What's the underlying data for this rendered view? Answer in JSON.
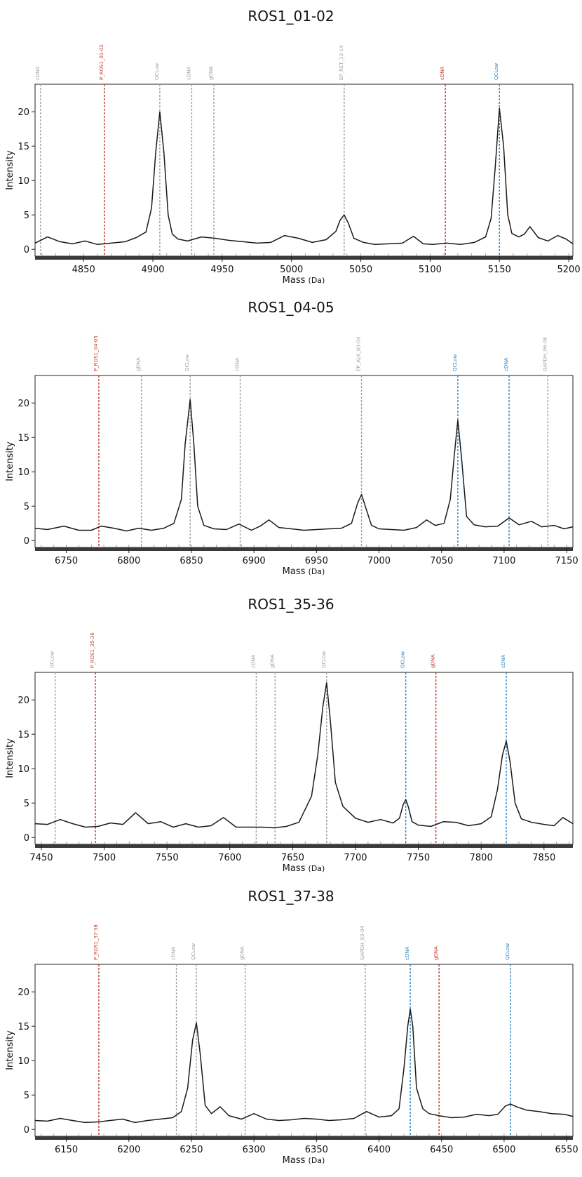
{
  "chart_data": [
    {
      "type": "line",
      "title": "ROS1_01-02",
      "xlabel": "Mass",
      "xlabel_unit": "(Da)",
      "ylabel": "Intensity",
      "xlim": [
        4815,
        5203
      ],
      "ylim": [
        -1,
        24
      ],
      "x_ticks": [
        4850,
        4900,
        4950,
        5000,
        5050,
        5100,
        5150,
        5200
      ],
      "y_ticks": [
        0,
        5,
        10,
        15,
        20
      ],
      "markers": [
        {
          "x": 4819,
          "label": "cDNA",
          "color": "#a0a0a0"
        },
        {
          "x": 4865,
          "label": "P_ROS1_01-02",
          "color": "#c0392b"
        },
        {
          "x": 4905,
          "label": "QCLow",
          "color": "#a0a0a0"
        },
        {
          "x": 4928,
          "label": "cDNA",
          "color": "#a0a0a0"
        },
        {
          "x": 4944,
          "label": "gDNA",
          "color": "#a0a0a0"
        },
        {
          "x": 5038,
          "label": "EP_RET_13-14",
          "color": "#a0a0a0"
        },
        {
          "x": 5111,
          "label": "cDNA",
          "color": "#c0392b"
        },
        {
          "x": 5150,
          "label": "QCLow",
          "color": "#2e86c1"
        }
      ],
      "series": [
        {
          "x": [
            4815,
            4824,
            4833,
            4842,
            4851,
            4860,
            4870,
            4880,
            4888,
            4895,
            4899,
            4902,
            4905,
            4908,
            4911,
            4914,
            4918,
            4925,
            4935,
            4945,
            4955,
            4965,
            4975,
            4985,
            4995,
            5005,
            5015,
            5025,
            5032,
            5035,
            5038,
            5041,
            5045,
            5052,
            5060,
            5070,
            5080,
            5088,
            5095,
            5102,
            5112,
            5122,
            5132,
            5140,
            5144,
            5147,
            5150,
            5153,
            5156,
            5159,
            5164,
            5168,
            5172,
            5178,
            5185,
            5192,
            5198,
            5203
          ],
          "y": [
            0.9,
            1.8,
            1.1,
            0.8,
            1.2,
            0.7,
            0.9,
            1.1,
            1.7,
            2.5,
            6,
            14,
            20,
            14,
            5,
            2.2,
            1.5,
            1.2,
            1.8,
            1.6,
            1.3,
            1.1,
            0.9,
            1.0,
            2.0,
            1.6,
            1.0,
            1.4,
            2.6,
            4.2,
            5.0,
            3.8,
            1.6,
            1.0,
            0.7,
            0.8,
            0.9,
            1.9,
            0.8,
            0.7,
            0.9,
            0.7,
            1.0,
            1.8,
            4.5,
            12,
            20.5,
            15,
            5,
            2.3,
            1.8,
            2.2,
            3.3,
            1.7,
            1.2,
            2.0,
            1.5,
            0.8
          ]
        }
      ]
    },
    {
      "type": "line",
      "title": "ROS1_04-05",
      "xlabel": "Mass",
      "xlabel_unit": "(Da)",
      "ylabel": "Intensity",
      "xlim": [
        6725,
        7155
      ],
      "ylim": [
        -1,
        24
      ],
      "x_ticks": [
        6750,
        6800,
        6850,
        6900,
        6950,
        7000,
        7050,
        7100,
        7150
      ],
      "y_ticks": [
        0,
        5,
        10,
        15,
        20
      ],
      "markers": [
        {
          "x": 6776,
          "label": "P_ROS1_04-05",
          "color": "#c0392b"
        },
        {
          "x": 6810,
          "label": "gDNA",
          "color": "#a0a0a0"
        },
        {
          "x": 6849,
          "label": "QCLow",
          "color": "#a0a0a0"
        },
        {
          "x": 6889,
          "label": "cDNA",
          "color": "#a0a0a0"
        },
        {
          "x": 6986,
          "label": "EP_ALK_03-04",
          "color": "#a0a0a0"
        },
        {
          "x": 7063,
          "label": "QCLow",
          "color": "#2e86c1"
        },
        {
          "x": 7104,
          "label": "cDNA",
          "color": "#2e86c1"
        },
        {
          "x": 7135,
          "label": "GAPDH_06-08",
          "color": "#a0a0a0"
        }
      ],
      "series": [
        {
          "x": [
            6725,
            6735,
            6748,
            6760,
            6770,
            6778,
            6788,
            6798,
            6808,
            6818,
            6828,
            6836,
            6842,
            6845,
            6849,
            6852,
            6855,
            6860,
            6868,
            6878,
            6888,
            6898,
            6905,
            6912,
            6920,
            6930,
            6940,
            6950,
            6960,
            6970,
            6978,
            6983,
            6986,
            6989,
            6994,
            7000,
            7010,
            7020,
            7030,
            7038,
            7045,
            7052,
            7057,
            7060,
            7063,
            7066,
            7070,
            7076,
            7085,
            7095,
            7104,
            7112,
            7122,
            7130,
            7140,
            7148,
            7155
          ],
          "y": [
            1.8,
            1.6,
            2.1,
            1.5,
            1.5,
            2.1,
            1.8,
            1.4,
            1.8,
            1.5,
            1.8,
            2.5,
            6,
            14,
            20.5,
            14,
            5,
            2.2,
            1.7,
            1.6,
            2.4,
            1.5,
            2.1,
            3,
            1.9,
            1.7,
            1.5,
            1.6,
            1.7,
            1.8,
            2.5,
            5.5,
            6.7,
            5,
            2.2,
            1.7,
            1.6,
            1.5,
            1.9,
            3.0,
            2.2,
            2.5,
            6,
            12,
            17.5,
            12,
            3.5,
            2.3,
            2.0,
            2.1,
            3.3,
            2.3,
            2.8,
            2.0,
            2.2,
            1.7,
            2.0
          ]
        }
      ]
    },
    {
      "type": "line",
      "title": "ROS1_35-36",
      "xlabel": "Mass",
      "xlabel_unit": "(Da)",
      "ylabel": "Intensity",
      "xlim": [
        7445,
        7873
      ],
      "ylim": [
        -1,
        24
      ],
      "x_ticks": [
        7450,
        7500,
        7550,
        7600,
        7650,
        7700,
        7750,
        7800,
        7850
      ],
      "y_ticks": [
        0,
        5,
        10,
        15,
        20
      ],
      "markers": [
        {
          "x": 7461,
          "label": "QCLow",
          "color": "#a0a0a0"
        },
        {
          "x": 7493,
          "label": "P_ROS1_35-36",
          "color": "#c0392b"
        },
        {
          "x": 7621,
          "label": "cDNA",
          "color": "#a0a0a0"
        },
        {
          "x": 7636,
          "label": "gDNA",
          "color": "#a0a0a0"
        },
        {
          "x": 7677,
          "label": "QCLow",
          "color": "#a0a0a0"
        },
        {
          "x": 7740,
          "label": "QCLow",
          "color": "#2e86c1"
        },
        {
          "x": 7764,
          "label": "gDNA",
          "color": "#c0392b"
        },
        {
          "x": 7820,
          "label": "cDNA",
          "color": "#2e86c1"
        }
      ],
      "series": [
        {
          "x": [
            7445,
            7455,
            7465,
            7475,
            7485,
            7495,
            7505,
            7515,
            7525,
            7535,
            7545,
            7555,
            7565,
            7575,
            7585,
            7595,
            7605,
            7615,
            7625,
            7635,
            7645,
            7655,
            7665,
            7670,
            7674,
            7677,
            7680,
            7684,
            7690,
            7700,
            7710,
            7720,
            7730,
            7735,
            7738,
            7740,
            7742,
            7745,
            7750,
            7760,
            7770,
            7780,
            7790,
            7800,
            7808,
            7813,
            7817,
            7820,
            7823,
            7827,
            7832,
            7840,
            7850,
            7858,
            7865,
            7873
          ],
          "y": [
            2.0,
            1.9,
            2.6,
            2.0,
            1.5,
            1.6,
            2.1,
            1.9,
            3.6,
            2.0,
            2.3,
            1.5,
            2.0,
            1.5,
            1.7,
            2.9,
            1.5,
            1.5,
            1.5,
            1.4,
            1.6,
            2.2,
            6,
            12,
            19,
            22.5,
            17,
            8,
            4.5,
            2.8,
            2.2,
            2.6,
            2.1,
            2.8,
            4.8,
            5.5,
            4.5,
            2.3,
            1.8,
            1.6,
            2.3,
            2.2,
            1.7,
            2.0,
            3.0,
            7,
            12,
            14,
            11,
            5,
            2.7,
            2.2,
            1.9,
            1.7,
            2.9,
            2.0
          ]
        }
      ]
    },
    {
      "type": "line",
      "title": "ROS1_37-38",
      "xlabel": "Mass",
      "xlabel_unit": "(Da)",
      "ylabel": "Intensity",
      "xlim": [
        6125,
        6555
      ],
      "ylim": [
        -1,
        24
      ],
      "x_ticks": [
        6150,
        6200,
        6250,
        6300,
        6350,
        6400,
        6450,
        6500,
        6550
      ],
      "y_ticks": [
        0,
        5,
        10,
        15,
        20
      ],
      "markers": [
        {
          "x": 6176,
          "label": "P_ROS1_37-38",
          "color": "#c0392b"
        },
        {
          "x": 6238,
          "label": "cDNA",
          "color": "#a0a0a0"
        },
        {
          "x": 6254,
          "label": "QCLow",
          "color": "#a0a0a0"
        },
        {
          "x": 6293,
          "label": "gDNA",
          "color": "#a0a0a0"
        },
        {
          "x": 6389,
          "label": "GAPDH_03-04",
          "color": "#a0a0a0"
        },
        {
          "x": 6425,
          "label": "cDNA",
          "color": "#2e86c1"
        },
        {
          "x": 6448,
          "label": "gDNA",
          "color": "#c0392b"
        },
        {
          "x": 6505,
          "label": "QCLow",
          "color": "#2e86c1"
        }
      ],
      "series": [
        {
          "x": [
            6125,
            6135,
            6145,
            6155,
            6165,
            6176,
            6185,
            6195,
            6205,
            6215,
            6225,
            6235,
            6242,
            6247,
            6251,
            6254,
            6257,
            6261,
            6266,
            6273,
            6280,
            6290,
            6300,
            6310,
            6320,
            6330,
            6340,
            6350,
            6360,
            6370,
            6380,
            6390,
            6400,
            6410,
            6416,
            6420,
            6423,
            6425,
            6427,
            6430,
            6435,
            6440,
            6448,
            6458,
            6468,
            6478,
            6488,
            6495,
            6501,
            6505,
            6510,
            6518,
            6528,
            6538,
            6548,
            6555
          ],
          "y": [
            1.3,
            1.2,
            1.6,
            1.3,
            1.0,
            1.1,
            1.3,
            1.5,
            1.0,
            1.3,
            1.5,
            1.7,
            2.6,
            6,
            13,
            15.5,
            11,
            3.5,
            2.3,
            3.3,
            2.0,
            1.5,
            2.3,
            1.5,
            1.3,
            1.4,
            1.6,
            1.5,
            1.3,
            1.4,
            1.6,
            2.6,
            1.8,
            2.0,
            3,
            9,
            15,
            17.5,
            15,
            6,
            3,
            2.3,
            2.0,
            1.7,
            1.8,
            2.2,
            2.0,
            2.2,
            3.4,
            3.7,
            3.3,
            2.8,
            2.6,
            2.3,
            2.2,
            1.9
          ]
        }
      ]
    }
  ]
}
